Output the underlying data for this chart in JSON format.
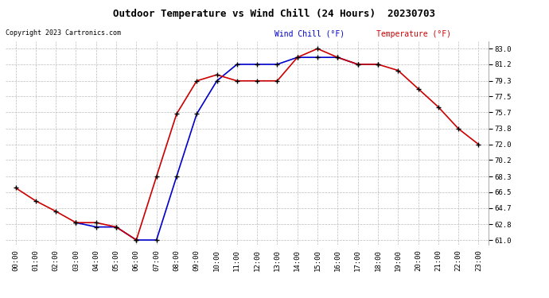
{
  "title": "Outdoor Temperature vs Wind Chill (24 Hours)  20230703",
  "copyright": "Copyright 2023 Cartronics.com",
  "legend_wind_chill": "Wind Chill (°F)",
  "legend_temperature": "Temperature (°F)",
  "hours": [
    0,
    1,
    2,
    3,
    4,
    5,
    6,
    7,
    8,
    9,
    10,
    11,
    12,
    13,
    14,
    15,
    16,
    17,
    18,
    19,
    20,
    21,
    22,
    23
  ],
  "x_labels": [
    "00:00",
    "01:00",
    "02:00",
    "03:00",
    "04:00",
    "05:00",
    "06:00",
    "07:00",
    "08:00",
    "09:00",
    "10:00",
    "11:00",
    "12:00",
    "13:00",
    "14:00",
    "15:00",
    "16:00",
    "17:00",
    "18:00",
    "19:00",
    "20:00",
    "21:00",
    "22:00",
    "23:00"
  ],
  "temperature": [
    67.0,
    65.5,
    64.3,
    63.0,
    63.0,
    62.5,
    61.0,
    68.3,
    75.5,
    79.3,
    80.0,
    79.3,
    79.3,
    79.3,
    82.0,
    83.0,
    82.0,
    81.2,
    81.2,
    80.5,
    78.4,
    76.3,
    73.8,
    72.0
  ],
  "wind_chill": [
    null,
    null,
    null,
    63.0,
    62.5,
    62.5,
    61.0,
    61.0,
    68.3,
    75.5,
    79.3,
    81.2,
    81.2,
    81.2,
    82.0,
    82.0,
    82.0,
    81.2,
    81.2,
    null,
    null,
    null,
    null,
    null
  ],
  "temp_color": "#cc0000",
  "wind_chill_color": "#0000cc",
  "bg_color": "#ffffff",
  "grid_color": "#bbbbbb",
  "y_ticks": [
    61.0,
    62.8,
    64.7,
    66.5,
    68.3,
    70.2,
    72.0,
    73.8,
    75.7,
    77.5,
    79.3,
    81.2,
    83.0
  ],
  "ylim": [
    60.5,
    83.8
  ],
  "marker": "+",
  "marker_color": "#000000",
  "marker_size": 5,
  "line_width": 1.2
}
